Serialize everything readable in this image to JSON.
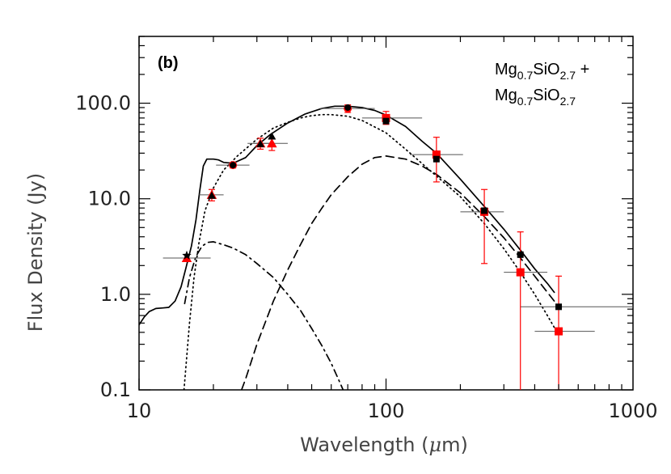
{
  "chart_data": {
    "type": "scatter",
    "panel_label": "(b)",
    "composition": {
      "line1": {
        "main": "Mg",
        "sub1": "0.7",
        "mid": "SiO",
        "sub2": "2.7",
        "tail": " +"
      },
      "line2": {
        "main": "Mg",
        "sub1": "0.7",
        "mid": "SiO",
        "sub2": "2.7",
        "tail": ""
      }
    },
    "xlabel": {
      "prefix": "Wavelength (",
      "symbol": "μ",
      "suffix": "m)"
    },
    "ylabel": "Flux Density (Jy)",
    "x_scale": "log",
    "y_scale": "log",
    "xlim": [
      10,
      1000
    ],
    "ylim": [
      0.1,
      500
    ],
    "x_ticks": [
      {
        "value": 10,
        "label": "10"
      },
      {
        "value": 100,
        "label": "100"
      },
      {
        "value": 1000,
        "label": "1000"
      }
    ],
    "y_ticks": [
      {
        "value": 0.1,
        "label": "0.1"
      },
      {
        "value": 1,
        "label": "1.0"
      },
      {
        "value": 10,
        "label": "10.0"
      },
      {
        "value": 100,
        "label": "100.0"
      }
    ],
    "colors": {
      "model": "#000000",
      "observed": "#ff0000",
      "hbar": "#555555"
    },
    "curves": [
      {
        "id": "total",
        "dash": "solid",
        "points": [
          [
            10,
            0.48
          ],
          [
            10.5,
            0.58
          ],
          [
            11,
            0.66
          ],
          [
            11.7,
            0.71
          ],
          [
            12.5,
            0.72
          ],
          [
            13.2,
            0.73
          ],
          [
            14,
            0.85
          ],
          [
            14.8,
            1.2
          ],
          [
            15.5,
            1.9
          ],
          [
            16.3,
            3.2
          ],
          [
            17,
            6
          ],
          [
            17.6,
            12
          ],
          [
            18.2,
            22
          ],
          [
            18.8,
            26
          ],
          [
            20,
            26
          ],
          [
            21,
            25.5
          ],
          [
            22,
            24
          ],
          [
            24,
            23.5
          ],
          [
            27,
            27
          ],
          [
            30,
            36
          ],
          [
            34,
            47
          ],
          [
            40,
            62
          ],
          [
            47,
            77
          ],
          [
            55,
            88
          ],
          [
            62,
            93
          ],
          [
            70,
            93
          ],
          [
            80,
            90
          ],
          [
            90,
            84
          ],
          [
            100,
            75
          ],
          [
            120,
            57
          ],
          [
            140,
            40
          ],
          [
            160,
            30
          ],
          [
            200,
            16
          ],
          [
            250,
            8.3
          ],
          [
            300,
            4.8
          ],
          [
            350,
            2.9
          ],
          [
            400,
            1.85
          ],
          [
            450,
            1.3
          ],
          [
            480,
            1.05
          ]
        ]
      },
      {
        "id": "warm",
        "dash": "dotted",
        "points": [
          [
            15.2,
            0.1
          ],
          [
            15.5,
            0.18
          ],
          [
            16,
            0.5
          ],
          [
            16.7,
            1.5
          ],
          [
            17.5,
            3.5
          ],
          [
            18.5,
            7.5
          ],
          [
            20,
            13
          ],
          [
            22,
            20
          ],
          [
            25,
            28
          ],
          [
            30,
            42
          ],
          [
            35,
            55
          ],
          [
            40,
            63
          ],
          [
            45,
            70
          ],
          [
            50,
            74
          ],
          [
            55,
            76
          ],
          [
            60,
            76
          ],
          [
            70,
            73
          ],
          [
            80,
            66
          ],
          [
            100,
            49
          ],
          [
            120,
            33
          ],
          [
            150,
            20
          ],
          [
            200,
            10.5
          ],
          [
            250,
            5.5
          ],
          [
            300,
            3.0
          ],
          [
            350,
            1.7
          ],
          [
            400,
            1.0
          ],
          [
            450,
            0.6
          ],
          [
            480,
            0.45
          ]
        ]
      },
      {
        "id": "cold",
        "dash": "dashed",
        "points": [
          [
            26,
            0.1
          ],
          [
            27,
            0.13
          ],
          [
            30,
            0.3
          ],
          [
            35,
            0.85
          ],
          [
            40,
            1.8
          ],
          [
            45,
            3.3
          ],
          [
            50,
            5.5
          ],
          [
            55,
            8
          ],
          [
            60,
            11
          ],
          [
            70,
            17
          ],
          [
            80,
            23
          ],
          [
            90,
            27
          ],
          [
            100,
            28
          ],
          [
            120,
            26
          ],
          [
            140,
            22
          ],
          [
            160,
            18
          ],
          [
            200,
            11.5
          ],
          [
            250,
            6.5
          ],
          [
            300,
            3.9
          ],
          [
            350,
            2.4
          ],
          [
            400,
            1.55
          ],
          [
            450,
            1.05
          ],
          [
            480,
            0.85
          ]
        ]
      },
      {
        "id": "hot",
        "dash": "dash-dot",
        "points": [
          [
            15.3,
            0.8
          ],
          [
            16,
            1.5
          ],
          [
            17,
            2.5
          ],
          [
            18,
            3.2
          ],
          [
            19,
            3.5
          ],
          [
            20,
            3.55
          ],
          [
            22,
            3.3
          ],
          [
            24,
            3.05
          ],
          [
            27,
            2.6
          ],
          [
            30,
            2.1
          ],
          [
            35,
            1.5
          ],
          [
            40,
            1.0
          ],
          [
            45,
            0.68
          ],
          [
            50,
            0.44
          ],
          [
            55,
            0.29
          ],
          [
            60,
            0.19
          ],
          [
            65,
            0.12
          ],
          [
            67,
            0.1
          ]
        ]
      }
    ],
    "observed_points": [
      {
        "x": 15.6,
        "y": 2.4,
        "xlow": 12.5,
        "xhigh": 19.5,
        "ylow": 2.2,
        "yhigh": 2.6,
        "marker": "triangle"
      },
      {
        "x": 19.7,
        "y": 11.0,
        "xlow": 17.5,
        "xhigh": 22.0,
        "ylow": 9.5,
        "yhigh": 12.5,
        "marker": "triangle"
      },
      {
        "x": 24.0,
        "y": 22.5,
        "xlow": 20.5,
        "xhigh": 28.0,
        "ylow": 21.0,
        "yhigh": 24.0,
        "marker": "circle"
      },
      {
        "x": 31.0,
        "y": 38.0,
        "xlow": 27.5,
        "xhigh": 35.0,
        "ylow": 33.0,
        "yhigh": 43.0,
        "marker": "triangle"
      },
      {
        "x": 34.5,
        "y": 38.0,
        "xlow": 29.0,
        "xhigh": 40.0,
        "ylow": 32.0,
        "yhigh": 43.0,
        "marker": "triangle"
      },
      {
        "x": 70.0,
        "y": 88.0,
        "xlow": 54.0,
        "xhigh": 90.0,
        "ylow": 80.0,
        "yhigh": 96.0,
        "marker": "circle"
      },
      {
        "x": 100.0,
        "y": 70.0,
        "xlow": 80.0,
        "xhigh": 140.0,
        "ylow": 60.0,
        "yhigh": 82.0,
        "marker": "square"
      },
      {
        "x": 160.0,
        "y": 29.0,
        "xlow": 125.0,
        "xhigh": 205.0,
        "ylow": 15.0,
        "yhigh": 44.0,
        "marker": "square"
      },
      {
        "x": 250.0,
        "y": 7.3,
        "xlow": 200.0,
        "xhigh": 300.0,
        "ylow": 2.1,
        "yhigh": 12.5,
        "marker": "square"
      },
      {
        "x": 350.0,
        "y": 1.7,
        "xlow": 300.0,
        "xhigh": 450.0,
        "ylow": 0.1,
        "yhigh": 4.5,
        "marker": "square"
      },
      {
        "x": 500.0,
        "y": 0.41,
        "xlow": 400.0,
        "xhigh": 700.0,
        "ylow": 0.1,
        "yhigh": 1.55,
        "marker": "square"
      }
    ],
    "model_points": [
      {
        "x": 15.6,
        "y": 2.55,
        "marker": "star"
      },
      {
        "x": 19.7,
        "y": 10.8,
        "marker": "triangle"
      },
      {
        "x": 24.0,
        "y": 22.5,
        "marker": "circle"
      },
      {
        "x": 31.0,
        "y": 37.5,
        "marker": "triangle"
      },
      {
        "x": 34.5,
        "y": 45.0,
        "marker": "triangle"
      },
      {
        "x": 70.0,
        "y": 90.0,
        "marker": "circle"
      },
      {
        "x": 100.0,
        "y": 65.0,
        "marker": "square"
      },
      {
        "x": 160.0,
        "y": 26.0,
        "marker": "square"
      },
      {
        "x": 250.0,
        "y": 7.5,
        "marker": "square"
      },
      {
        "x": 350.0,
        "y": 2.6,
        "marker": "square"
      },
      {
        "x": 500.0,
        "y": 0.74,
        "marker": "square",
        "xlow": 350.0,
        "xhigh": 1000.0
      }
    ]
  }
}
